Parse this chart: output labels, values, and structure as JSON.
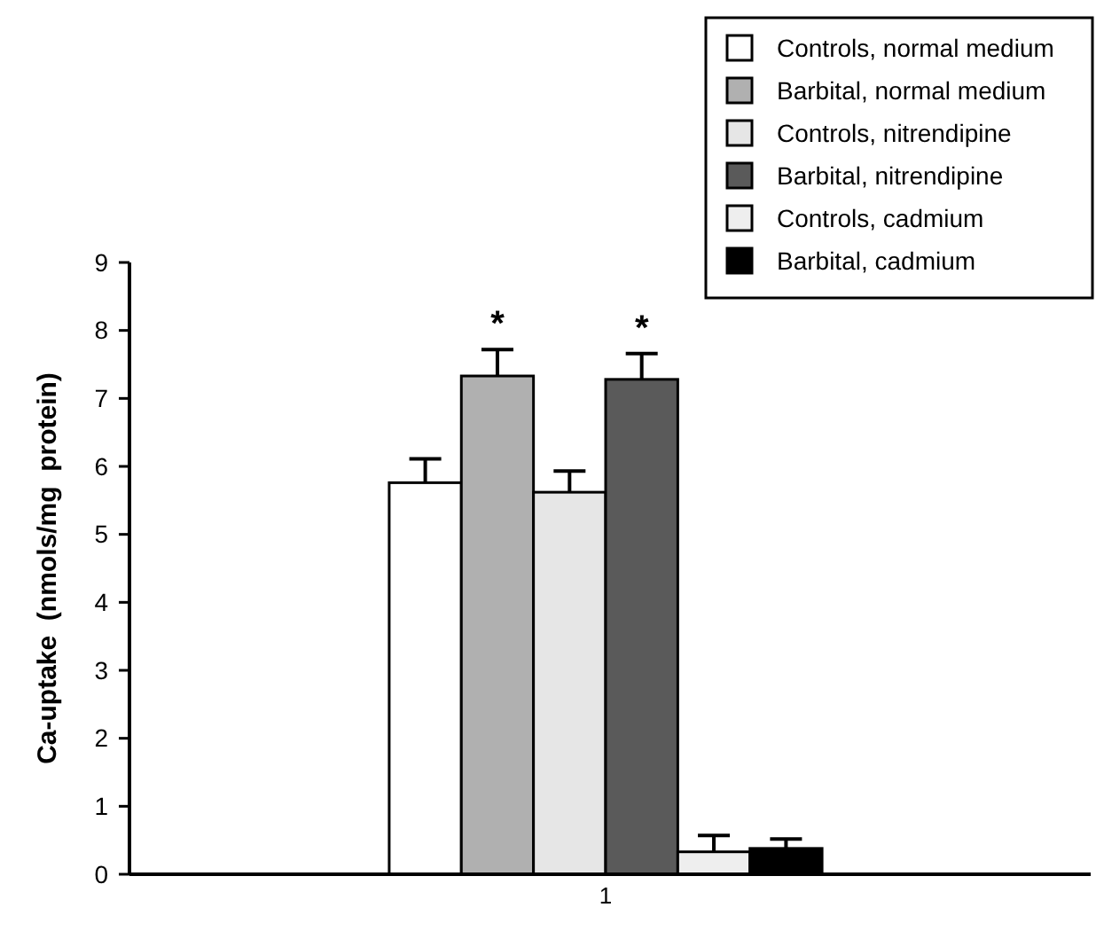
{
  "chart_data": {
    "type": "bar",
    "ylabel": "Ca-uptake  (nmols/mg  protein)",
    "categories": [
      "1"
    ],
    "ylim": [
      0,
      9
    ],
    "yticks": [
      0,
      1,
      2,
      3,
      4,
      5,
      6,
      7,
      8,
      9
    ],
    "legend": "top right",
    "series": [
      {
        "name": "Controls, normal medium",
        "color": "#ffffff",
        "values": [
          5.76
        ],
        "errors": [
          [
            5.76,
            6.11
          ]
        ]
      },
      {
        "name": "Barbital, normal medium",
        "color": "#b0b0b0",
        "values": [
          7.33
        ],
        "errors": [
          [
            7.33,
            7.72
          ]
        ]
      },
      {
        "name": "Controls, nitrendipine",
        "color": "#e6e6e6",
        "values": [
          5.62
        ],
        "errors": [
          [
            5.62,
            5.93
          ]
        ]
      },
      {
        "name": "Barbital, nitrendipine",
        "color": "#5a5a5a",
        "values": [
          7.28
        ],
        "errors": [
          [
            7.28,
            7.66
          ]
        ]
      },
      {
        "name": "Controls, cadmium",
        "color": "#eeeeee",
        "values": [
          0.33
        ],
        "errors": [
          [
            0.33,
            0.57
          ]
        ]
      },
      {
        "name": "Barbital, cadmium",
        "color": "#000000",
        "values": [
          0.38
        ],
        "errors": [
          [
            0.38,
            0.52
          ]
        ]
      }
    ],
    "annotations": [
      "*",
      "*"
    ]
  }
}
